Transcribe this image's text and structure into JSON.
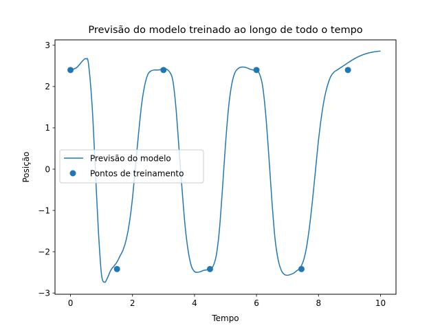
{
  "chart_data": {
    "type": "line",
    "title": "Previsão do modelo treinado ao longo de todo o tempo",
    "xlabel": "Tempo",
    "ylabel": "Posição",
    "xlim": [
      -0.5,
      10.5
    ],
    "ylim": [
      -3.03,
      3.13
    ],
    "xticks": [
      0,
      2,
      4,
      6,
      8,
      10
    ],
    "xtick_labels": [
      "0",
      "2",
      "4",
      "6",
      "8",
      "10"
    ],
    "yticks": [
      -3,
      -2,
      -1,
      0,
      1,
      2,
      3
    ],
    "ytick_labels": [
      "−3",
      "−2",
      "−1",
      "0",
      "1",
      "2",
      "3"
    ],
    "grid": false,
    "legend": {
      "position": "center-left"
    },
    "series": [
      {
        "name": "Previsão do modelo",
        "kind": "line",
        "color": "#1f77b4",
        "x": [
          0.0,
          0.2,
          0.4,
          0.5,
          0.58,
          0.7,
          0.8,
          0.9,
          1.0,
          1.1,
          1.2,
          1.3,
          1.4,
          1.5,
          1.6,
          1.7,
          1.8,
          1.9,
          2.0,
          2.1,
          2.2,
          2.3,
          2.4,
          2.5,
          2.6,
          2.7,
          2.8,
          2.9,
          3.0,
          3.1,
          3.2,
          3.3,
          3.4,
          3.5,
          3.6,
          3.7,
          3.8,
          3.9,
          4.0,
          4.1,
          4.2,
          4.3,
          4.4,
          4.5,
          4.6,
          4.7,
          4.8,
          4.9,
          5.0,
          5.1,
          5.2,
          5.3,
          5.4,
          5.5,
          5.6,
          5.7,
          5.8,
          5.9,
          6.0,
          6.1,
          6.2,
          6.3,
          6.4,
          6.5,
          6.6,
          6.7,
          6.8,
          6.9,
          7.0,
          7.1,
          7.2,
          7.3,
          7.4,
          7.5,
          7.6,
          7.7,
          7.8,
          7.9,
          8.0,
          8.1,
          8.2,
          8.3,
          8.4,
          8.5,
          8.6,
          8.7,
          8.8,
          8.9,
          9.0,
          9.2,
          9.4,
          9.6,
          9.8,
          10.0
        ],
        "y": [
          2.4,
          2.46,
          2.63,
          2.67,
          2.55,
          1.5,
          0.0,
          -1.5,
          -2.55,
          -2.74,
          -2.62,
          -2.45,
          -2.35,
          -2.25,
          -2.1,
          -1.95,
          -1.7,
          -1.3,
          -0.7,
          0.1,
          0.9,
          1.6,
          2.05,
          2.3,
          2.38,
          2.4,
          2.4,
          2.41,
          2.42,
          2.42,
          2.35,
          2.15,
          1.5,
          0.5,
          -0.5,
          -1.4,
          -2.0,
          -2.35,
          -2.48,
          -2.5,
          -2.48,
          -2.45,
          -2.44,
          -2.43,
          -2.35,
          -2.1,
          -1.5,
          -0.5,
          0.6,
          1.5,
          2.05,
          2.33,
          2.43,
          2.47,
          2.47,
          2.45,
          2.42,
          2.4,
          2.38,
          2.3,
          2.0,
          1.3,
          0.3,
          -0.8,
          -1.7,
          -2.2,
          -2.45,
          -2.55,
          -2.57,
          -2.55,
          -2.52,
          -2.46,
          -2.4,
          -2.25,
          -1.95,
          -1.45,
          -0.8,
          -0.05,
          0.7,
          1.3,
          1.75,
          2.05,
          2.25,
          2.35,
          2.4,
          2.45,
          2.5,
          2.55,
          2.6,
          2.69,
          2.76,
          2.81,
          2.84,
          2.86
        ]
      },
      {
        "name": "Pontos de treinamento",
        "kind": "scatter",
        "color": "#1f77b4",
        "x": [
          0.0,
          1.5,
          3.0,
          4.5,
          6.0,
          7.45,
          8.95
        ],
        "y": [
          2.4,
          -2.42,
          2.4,
          -2.42,
          2.4,
          -2.42,
          2.4
        ]
      }
    ]
  }
}
